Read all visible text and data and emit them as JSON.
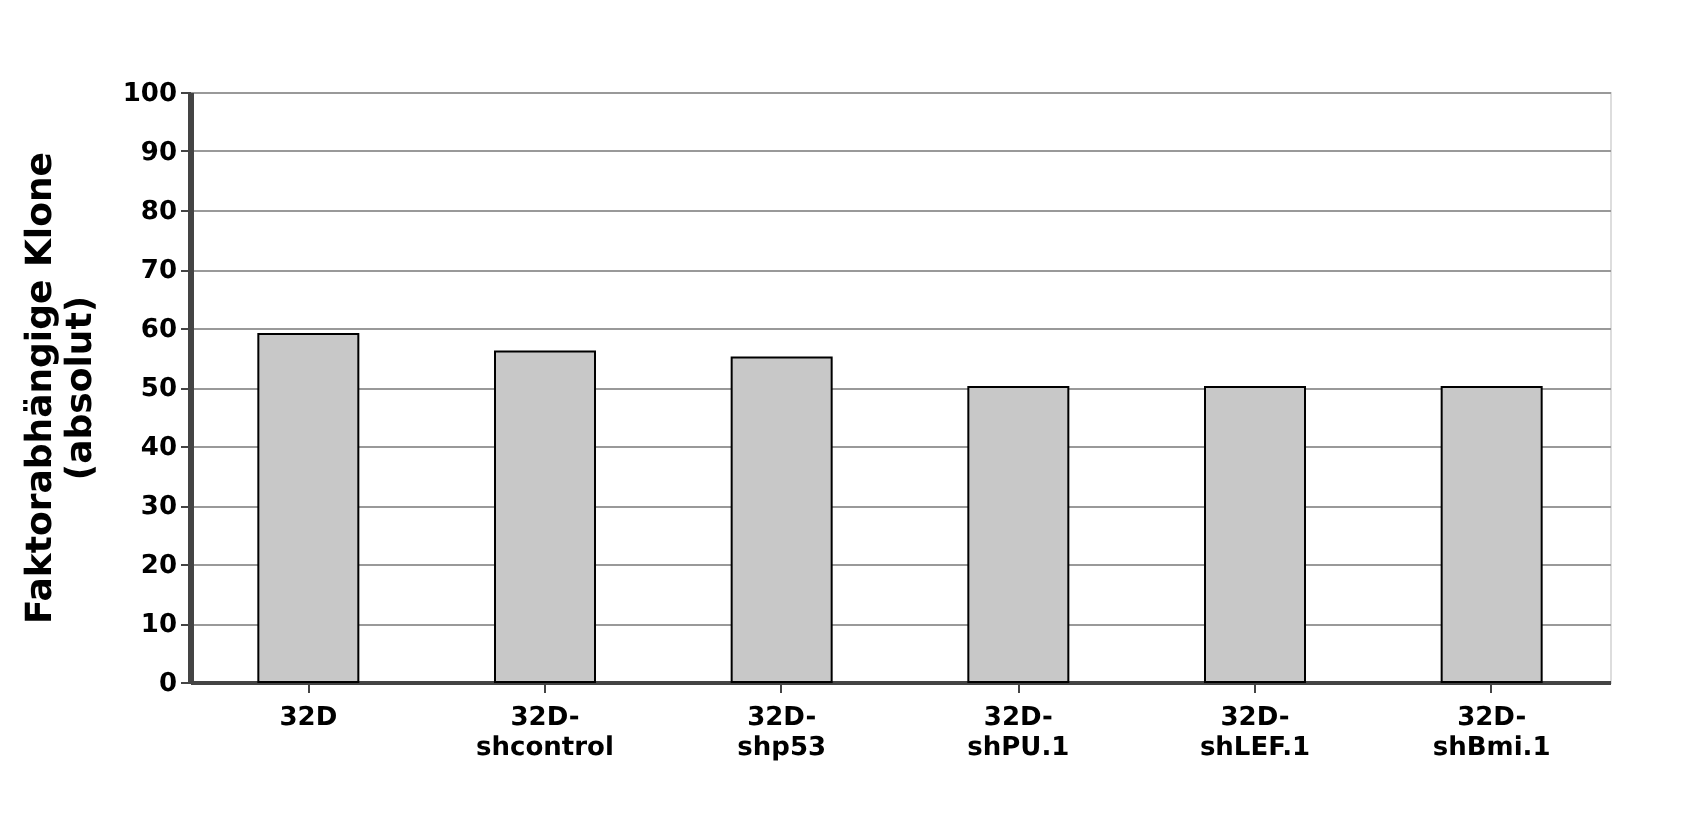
{
  "chart_data": {
    "type": "bar",
    "ylabel": "Faktorabhängige Klone (absolut)",
    "categories": [
      "32D",
      "32D-shcontrol",
      "32D-shp53",
      "32D-shPU.1",
      "32D-shLEF.1",
      "32D-shBmi.1"
    ],
    "values": [
      59,
      56,
      55,
      50,
      50,
      50
    ],
    "color": "#c8c8c8",
    "ylim": [
      0,
      100
    ],
    "yticks": [
      0,
      10,
      20,
      30,
      40,
      50,
      60,
      70,
      80,
      90,
      100
    ],
    "grid": "y"
  }
}
